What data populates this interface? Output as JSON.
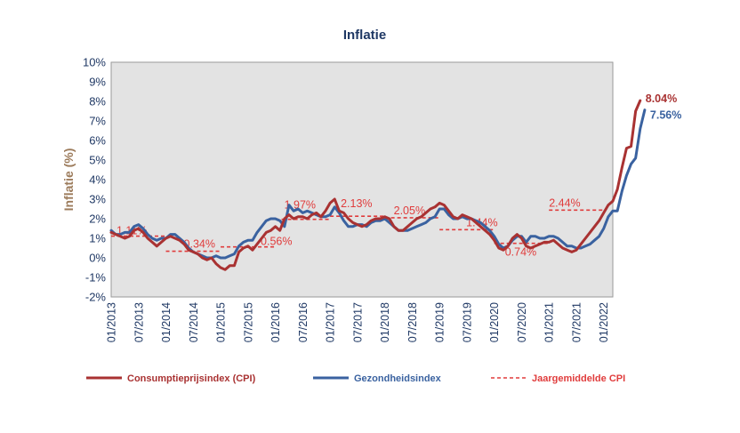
{
  "chart_data": {
    "type": "line",
    "title": "Inflatie",
    "ylabel": "Inflatie (%)",
    "xlabel": "",
    "ylim": [
      -2,
      10
    ],
    "y_ticks": [
      "-2%",
      "-1%",
      "0%",
      "1%",
      "2%",
      "3%",
      "4%",
      "5%",
      "6%",
      "7%",
      "8%",
      "9%",
      "10%"
    ],
    "x_ticks": [
      "01/2013",
      "07/2013",
      "01/2014",
      "07/2014",
      "01/2015",
      "07/2015",
      "01/2016",
      "07/2016",
      "01/2017",
      "07/2017",
      "01/2018",
      "07/2018",
      "01/2019",
      "07/2019",
      "01/2020",
      "07/2020",
      "01/2021",
      "07/2021",
      "01/2022"
    ],
    "grid": false,
    "legend_position": "bottom",
    "colors": {
      "cpi": "#a93232",
      "health": "#3a62a0",
      "average": "#e03c3c",
      "axis_text": "#1f3864",
      "plot_bg": "#e3e3e3"
    },
    "series": [
      {
        "name": "Consumptieprijsindex (CPI)",
        "key": "cpi",
        "start": "01/2013",
        "values": [
          1.3,
          1.2,
          1.1,
          1.0,
          1.1,
          1.4,
          1.5,
          1.3,
          1.0,
          0.8,
          0.6,
          0.8,
          1.0,
          1.1,
          1.0,
          0.9,
          0.7,
          0.4,
          0.3,
          0.2,
          0.0,
          -0.1,
          0.0,
          -0.3,
          -0.5,
          -0.6,
          -0.4,
          -0.4,
          0.3,
          0.5,
          0.6,
          0.4,
          0.7,
          1.0,
          1.3,
          1.4,
          1.6,
          1.4,
          2.0,
          2.2,
          2.0,
          2.1,
          2.1,
          2.0,
          2.2,
          2.3,
          2.1,
          2.4,
          2.8,
          3.0,
          2.4,
          2.3,
          2.0,
          1.8,
          1.7,
          1.6,
          1.7,
          1.9,
          2.0,
          2.0,
          2.1,
          2.0,
          1.6,
          1.4,
          1.4,
          1.6,
          1.8,
          2.0,
          2.1,
          2.3,
          2.5,
          2.6,
          2.8,
          2.7,
          2.4,
          2.1,
          2.0,
          2.2,
          2.1,
          2.0,
          1.8,
          1.6,
          1.4,
          1.2,
          0.9,
          0.5,
          0.4,
          0.6,
          1.0,
          1.2,
          1.0,
          0.6,
          0.5,
          0.6,
          0.7,
          0.8,
          0.8,
          0.9,
          0.7,
          0.5,
          0.4,
          0.3,
          0.4,
          0.7,
          1.0,
          1.3,
          1.6,
          1.9,
          2.3,
          2.7,
          2.9,
          3.5,
          4.6,
          5.6,
          5.7,
          7.5,
          8.04
        ]
      },
      {
        "name": "Gezondheidsindex",
        "key": "health",
        "start": "01/2013",
        "values": [
          1.4,
          1.2,
          1.2,
          1.3,
          1.3,
          1.6,
          1.7,
          1.5,
          1.2,
          1.0,
          0.9,
          1.0,
          1.0,
          1.2,
          1.2,
          1.0,
          0.8,
          0.5,
          0.3,
          0.2,
          0.1,
          0.0,
          0.0,
          0.1,
          0.0,
          0.0,
          0.1,
          0.2,
          0.6,
          0.8,
          0.9,
          0.9,
          1.3,
          1.6,
          1.9,
          2.0,
          2.0,
          1.9,
          1.6,
          2.7,
          2.4,
          2.5,
          2.3,
          2.4,
          2.3,
          2.2,
          2.1,
          2.1,
          2.2,
          2.6,
          2.3,
          1.9,
          1.6,
          1.6,
          1.7,
          1.7,
          1.6,
          1.8,
          1.9,
          1.9,
          2.0,
          1.8,
          1.6,
          1.4,
          1.4,
          1.4,
          1.5,
          1.6,
          1.7,
          1.8,
          2.0,
          2.1,
          2.5,
          2.5,
          2.2,
          2.0,
          2.0,
          2.1,
          2.0,
          2.0,
          1.9,
          1.8,
          1.6,
          1.4,
          1.1,
          0.7,
          0.5,
          0.6,
          0.9,
          1.1,
          1.1,
          0.8,
          1.1,
          1.1,
          1.0,
          1.0,
          1.1,
          1.1,
          1.0,
          0.8,
          0.6,
          0.6,
          0.5,
          0.5,
          0.6,
          0.7,
          0.9,
          1.1,
          1.5,
          2.1,
          2.4,
          2.4,
          3.4,
          4.2,
          4.8,
          5.1,
          6.6,
          7.56
        ]
      }
    ],
    "yearly_average": {
      "name": "Jaargemiddelde CPI",
      "segments": [
        {
          "start": "01/2013",
          "end": "12/2013",
          "value": 1.11,
          "label": "1.11%"
        },
        {
          "start": "01/2014",
          "end": "12/2014",
          "value": 0.34,
          "label": "0.34%"
        },
        {
          "start": "01/2015",
          "end": "12/2015",
          "value": 0.56,
          "label": "0.56%"
        },
        {
          "start": "01/2016",
          "end": "12/2016",
          "value": 1.97,
          "label": "1.97%"
        },
        {
          "start": "01/2017",
          "end": "12/2017",
          "value": 2.13,
          "label": "2.13%"
        },
        {
          "start": "01/2018",
          "end": "12/2018",
          "value": 2.05,
          "label": "2.05%"
        },
        {
          "start": "01/2019",
          "end": "12/2019",
          "value": 1.44,
          "label": "1.44%"
        },
        {
          "start": "01/2020",
          "end": "12/2020",
          "value": 0.74,
          "label": "0.74%"
        },
        {
          "start": "01/2021",
          "end": "12/2021",
          "value": 2.44,
          "label": "2.44%"
        }
      ]
    },
    "end_labels": {
      "cpi": "8.04%",
      "health": "7.56%"
    }
  }
}
